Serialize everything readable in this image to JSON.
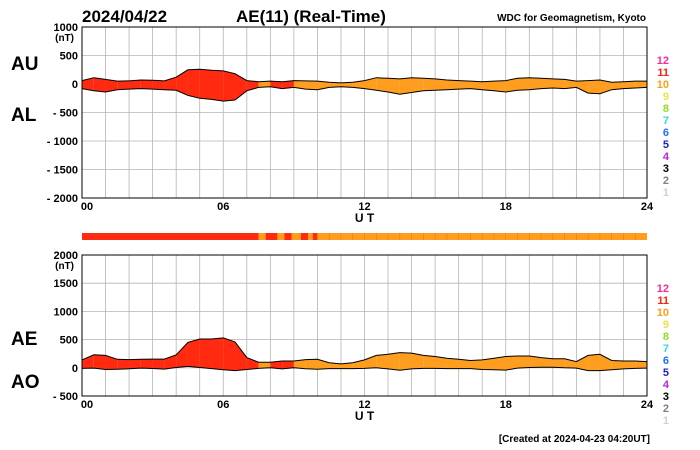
{
  "header": {
    "date": "2024/04/22",
    "title": "AE(11) (Real-Time)",
    "source": "WDC for Geomagnetism, Kyoto"
  },
  "footer": {
    "created": "[Created at 2024-04-23 04:20UT]"
  },
  "colors": {
    "background": "#ffffff",
    "grid": "#b4b4b4",
    "axis": "#000000",
    "fill_11": "#ff2a10",
    "fill_10": "#ff9d1e",
    "outline": "#000000"
  },
  "station_scale": [
    {
      "label": "12",
      "color": "#ff2a9a"
    },
    {
      "label": "11",
      "color": "#ff2010"
    },
    {
      "label": "10",
      "color": "#ff9d1e"
    },
    {
      "label": "9",
      "color": "#f0e040"
    },
    {
      "label": "8",
      "color": "#90e020"
    },
    {
      "label": "7",
      "color": "#30e0d0"
    },
    {
      "label": "6",
      "color": "#2070ff"
    },
    {
      "label": "5",
      "color": "#2020c0"
    },
    {
      "label": "4",
      "color": "#c020e0"
    },
    {
      "label": "3",
      "color": "#000000"
    },
    {
      "label": "2",
      "color": "#808080"
    },
    {
      "label": "1",
      "color": "#d0d0d0"
    }
  ],
  "station_bar": [
    {
      "from": 0,
      "to": 7.5,
      "stations": 11
    },
    {
      "from": 7.5,
      "to": 7.8,
      "stations": 10
    },
    {
      "from": 7.8,
      "to": 8.3,
      "stations": 11
    },
    {
      "from": 8.3,
      "to": 8.6,
      "stations": 10
    },
    {
      "from": 8.6,
      "to": 8.9,
      "stations": 11
    },
    {
      "from": 8.9,
      "to": 9.3,
      "stations": 10
    },
    {
      "from": 9.3,
      "to": 9.6,
      "stations": 11
    },
    {
      "from": 9.6,
      "to": 9.8,
      "stations": 10
    },
    {
      "from": 9.8,
      "to": 10.0,
      "stations": 11
    },
    {
      "from": 10.0,
      "to": 24,
      "stations": 10
    }
  ],
  "chart_data": [
    {
      "type": "area",
      "id": "au_al",
      "left_labels": [
        "AU",
        "AL"
      ],
      "ylabel": "(nT)",
      "ylim": [
        -2000,
        1000
      ],
      "yticks": [
        1000,
        500,
        0,
        -500,
        -1000,
        -1500,
        -2000
      ],
      "ytick_labels": [
        "1000",
        "500",
        "0",
        "- 500",
        "- 1000",
        "- 1500",
        "- 2000"
      ],
      "xlim": [
        0,
        24
      ],
      "xticks": [
        0,
        6,
        12,
        18,
        24
      ],
      "xtick_labels": [
        "00",
        "06",
        "12",
        "18",
        "24"
      ],
      "xlabel": "U T",
      "series": [
        {
          "key": "AU",
          "x": [
            0,
            0.5,
            1,
            1.5,
            2,
            2.5,
            3,
            3.5,
            4,
            4.5,
            5,
            5.5,
            6,
            6.5,
            7,
            7.5,
            8,
            8.5,
            9,
            9.5,
            10,
            10.5,
            11,
            11.5,
            12,
            12.5,
            13,
            13.5,
            14,
            14.5,
            15,
            15.5,
            16,
            16.5,
            17,
            17.5,
            18,
            18.5,
            19,
            19.5,
            20,
            20.5,
            21,
            21.5,
            22,
            22.5,
            23,
            23.5,
            24
          ],
          "values": [
            60,
            110,
            80,
            50,
            55,
            70,
            65,
            55,
            120,
            250,
            260,
            240,
            230,
            180,
            60,
            40,
            50,
            40,
            60,
            55,
            50,
            30,
            20,
            30,
            60,
            110,
            100,
            90,
            110,
            100,
            90,
            70,
            60,
            50,
            40,
            50,
            60,
            100,
            110,
            100,
            90,
            80,
            50,
            60,
            70,
            30,
            40,
            50,
            50
          ]
        },
        {
          "key": "AL",
          "x": [
            0,
            0.5,
            1,
            1.5,
            2,
            2.5,
            3,
            3.5,
            4,
            4.5,
            5,
            5.5,
            6,
            6.5,
            7,
            7.5,
            8,
            8.5,
            9,
            9.5,
            10,
            10.5,
            11,
            11.5,
            12,
            12.5,
            13,
            13.5,
            14,
            14.5,
            15,
            15.5,
            16,
            16.5,
            17,
            17.5,
            18,
            18.5,
            19,
            19.5,
            20,
            20.5,
            21,
            21.5,
            22,
            22.5,
            23,
            23.5,
            24
          ],
          "values": [
            -80,
            -120,
            -140,
            -100,
            -90,
            -80,
            -90,
            -100,
            -110,
            -200,
            -250,
            -270,
            -300,
            -280,
            -120,
            -60,
            -50,
            -80,
            -60,
            -90,
            -100,
            -60,
            -50,
            -60,
            -80,
            -110,
            -140,
            -180,
            -150,
            -120,
            -110,
            -100,
            -90,
            -80,
            -100,
            -120,
            -140,
            -110,
            -100,
            -80,
            -70,
            -80,
            -60,
            -160,
            -170,
            -100,
            -80,
            -70,
            -60
          ]
        }
      ]
    },
    {
      "type": "area",
      "id": "ae_ao",
      "left_labels": [
        "AE",
        "AO"
      ],
      "ylabel": "(nT)",
      "ylim": [
        -500,
        2000
      ],
      "yticks": [
        2000,
        1500,
        1000,
        500,
        0,
        -500
      ],
      "ytick_labels": [
        "2000",
        "1500",
        "1000",
        "500",
        "0",
        "- 500"
      ],
      "xlim": [
        0,
        24
      ],
      "xticks": [
        0,
        6,
        12,
        18,
        24
      ],
      "xtick_labels": [
        "00",
        "06",
        "12",
        "18",
        "24"
      ],
      "xlabel": "U T",
      "series": [
        {
          "key": "AE",
          "x": [
            0,
            0.5,
            1,
            1.5,
            2,
            2.5,
            3,
            3.5,
            4,
            4.5,
            5,
            5.5,
            6,
            6.5,
            7,
            7.5,
            8,
            8.5,
            9,
            9.5,
            10,
            10.5,
            11,
            11.5,
            12,
            12.5,
            13,
            13.5,
            14,
            14.5,
            15,
            15.5,
            16,
            16.5,
            17,
            17.5,
            18,
            18.5,
            19,
            19.5,
            20,
            20.5,
            21,
            21.5,
            22,
            22.5,
            23,
            23.5,
            24
          ],
          "values": [
            140,
            230,
            220,
            150,
            145,
            150,
            155,
            155,
            230,
            450,
            510,
            510,
            530,
            460,
            180,
            100,
            100,
            120,
            120,
            145,
            150,
            90,
            70,
            90,
            140,
            220,
            240,
            270,
            260,
            220,
            200,
            170,
            150,
            130,
            140,
            170,
            200,
            210,
            210,
            180,
            160,
            160,
            110,
            220,
            240,
            130,
            120,
            120,
            110
          ]
        },
        {
          "key": "AO",
          "x": [
            0,
            0.5,
            1,
            1.5,
            2,
            2.5,
            3,
            3.5,
            4,
            4.5,
            5,
            5.5,
            6,
            6.5,
            7,
            7.5,
            8,
            8.5,
            9,
            9.5,
            10,
            10.5,
            11,
            11.5,
            12,
            12.5,
            13,
            13.5,
            14,
            14.5,
            15,
            15.5,
            16,
            16.5,
            17,
            17.5,
            18,
            18.5,
            19,
            19.5,
            20,
            20.5,
            21,
            21.5,
            22,
            22.5,
            23,
            23.5,
            24
          ],
          "values": [
            -10,
            -5,
            -30,
            -25,
            -18,
            -5,
            -13,
            -23,
            5,
            25,
            5,
            -15,
            -35,
            -50,
            -30,
            -10,
            0,
            -20,
            0,
            -18,
            -25,
            -15,
            -15,
            -15,
            -10,
            0,
            -20,
            -45,
            -20,
            -10,
            -10,
            -15,
            -15,
            -15,
            -30,
            -35,
            -40,
            -5,
            5,
            10,
            10,
            0,
            -5,
            -50,
            -50,
            -35,
            -20,
            -10,
            -5
          ]
        }
      ]
    }
  ]
}
